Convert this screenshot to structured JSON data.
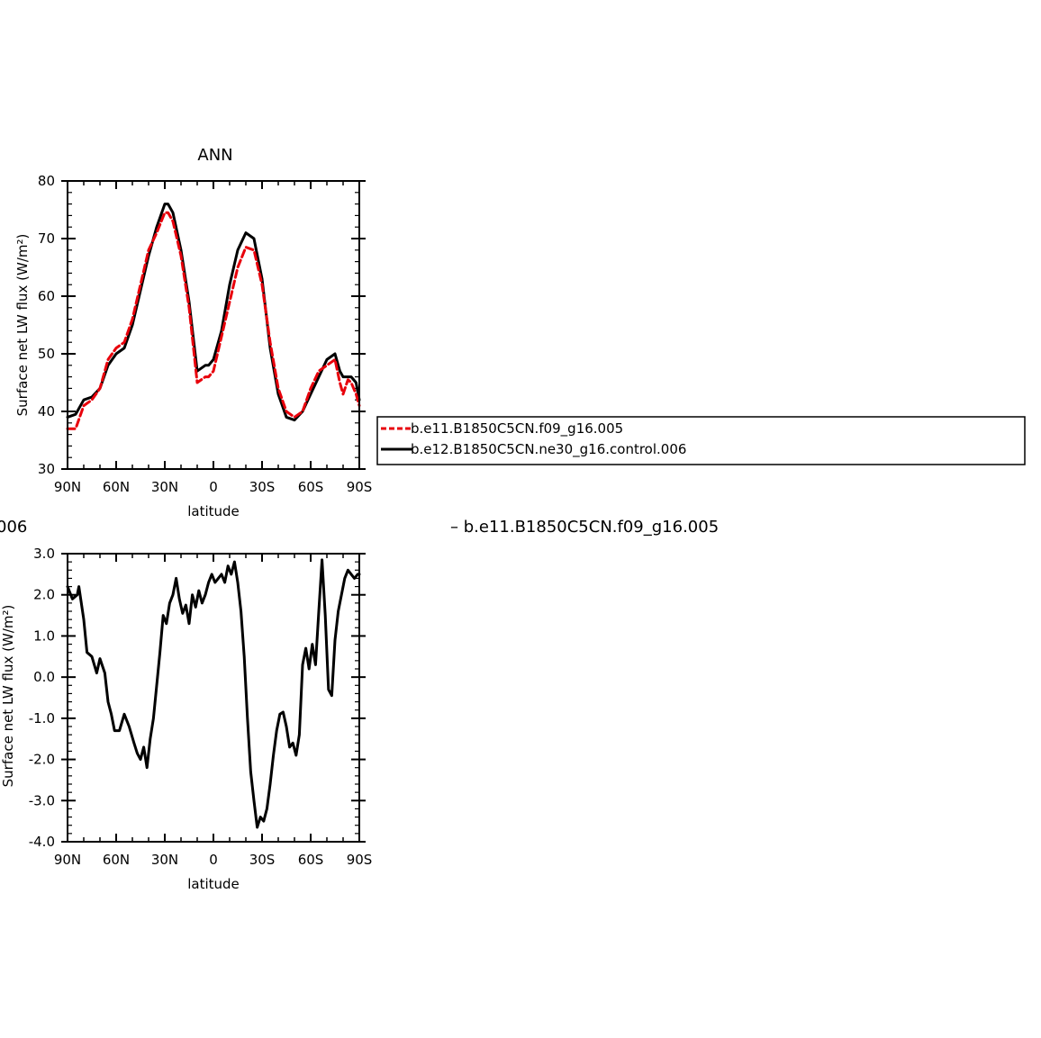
{
  "chart_data": [
    {
      "type": "line",
      "title": "ANN",
      "xlabel": "latitude",
      "ylabel": "Surface net LW flux (W/m²)",
      "xlim": [
        90,
        -90
      ],
      "ylim": [
        30,
        80
      ],
      "x_ticks": [
        90,
        60,
        30,
        0,
        -30,
        -60,
        -90
      ],
      "x_tick_labels": [
        "90N",
        "60N",
        "30N",
        "0",
        "30S",
        "60S",
        "90S"
      ],
      "y_ticks": [
        30,
        40,
        50,
        60,
        70,
        80
      ],
      "y_tick_labels": [
        "30",
        "40",
        "50",
        "60",
        "70",
        "80"
      ],
      "legend_placement": "right",
      "x": [
        90,
        85,
        80,
        75,
        70,
        65,
        60,
        55,
        50,
        45,
        40,
        35,
        30,
        28,
        25,
        20,
        15,
        10,
        5,
        3,
        0,
        -5,
        -10,
        -15,
        -20,
        -25,
        -30,
        -35,
        -40,
        -45,
        -50,
        -55,
        -60,
        -65,
        -70,
        -75,
        -78,
        -80,
        -83,
        -85,
        -88,
        -90
      ],
      "series": [
        {
          "name": "b.e11.B1850C5CN.f09_g16.005",
          "color": "#e8000b",
          "style": "dashed",
          "values": [
            37,
            37,
            41,
            42,
            44,
            49,
            51,
            52,
            56,
            62,
            68,
            71,
            74.5,
            74.5,
            73,
            67,
            58,
            45,
            46,
            46,
            47,
            53,
            59,
            65,
            68.5,
            68,
            62,
            52,
            44,
            40,
            39,
            40,
            44,
            47,
            48,
            49,
            45,
            43,
            45.5,
            45,
            43,
            41
          ]
        },
        {
          "name": "b.e12.B1850C5CN.ne30_g16.control.006",
          "color": "#000000",
          "style": "solid",
          "values": [
            39,
            39.5,
            42,
            42.5,
            44,
            48,
            50,
            51,
            55,
            61,
            67,
            72,
            76,
            76,
            74.5,
            68,
            59,
            47,
            48,
            48,
            49,
            54,
            62,
            68,
            71,
            70,
            63,
            51,
            43,
            39,
            38.5,
            40,
            43,
            46,
            49,
            50,
            47,
            46,
            46,
            46,
            45,
            42
          ]
        }
      ]
    },
    {
      "type": "line",
      "title": "",
      "xlabel": "latitude",
      "ylabel": "Surface net LW flux (W/m²)",
      "xlim": [
        90,
        -90
      ],
      "ylim": [
        -4,
        3
      ],
      "x_ticks": [
        90,
        60,
        30,
        0,
        -30,
        -60,
        -90
      ],
      "x_tick_labels": [
        "90N",
        "60N",
        "30N",
        "0",
        "30S",
        "60S",
        "90S"
      ],
      "y_ticks": [
        -4,
        -3,
        -2,
        -1,
        0,
        1,
        2,
        3
      ],
      "y_tick_labels": [
        "-4.0",
        "-3.0",
        "-2.0",
        "-1.0",
        "0.0",
        "1.0",
        "2.0",
        "3.0"
      ],
      "x": [
        90,
        87,
        84,
        83,
        80,
        78,
        75,
        72,
        70,
        67,
        65,
        63,
        61,
        58,
        55,
        52,
        49,
        47,
        45,
        43,
        41,
        39,
        37,
        35,
        33,
        31,
        29,
        27,
        25,
        23,
        21,
        19,
        17,
        15,
        13,
        11,
        9,
        7,
        5,
        3,
        1,
        -1,
        -3,
        -5,
        -7,
        -9,
        -11,
        -13,
        -15,
        -17,
        -19,
        -21,
        -23,
        -25,
        -27,
        -29,
        -31,
        -33,
        -35,
        -37,
        -39,
        -41,
        -43,
        -45,
        -47,
        -49,
        -51,
        -53,
        -55,
        -57,
        -59,
        -61,
        -63,
        -65,
        -67,
        -69,
        -71,
        -73,
        -75,
        -77,
        -79,
        -81,
        -83,
        -85,
        -87,
        -89,
        -90
      ],
      "series": [
        {
          "name": "",
          "color": "#000000",
          "style": "solid",
          "values": [
            2.2,
            1.9,
            2.0,
            2.2,
            1.4,
            0.6,
            0.5,
            0.1,
            0.45,
            0.1,
            -0.6,
            -0.9,
            -1.3,
            -1.3,
            -0.9,
            -1.2,
            -1.6,
            -1.85,
            -2.0,
            -1.7,
            -2.2,
            -1.5,
            -1.0,
            -0.2,
            0.6,
            1.5,
            1.3,
            1.8,
            2.0,
            2.4,
            1.9,
            1.55,
            1.75,
            1.3,
            2.0,
            1.7,
            2.1,
            1.8,
            2.0,
            2.3,
            2.5,
            2.3,
            2.4,
            2.5,
            2.3,
            2.7,
            2.5,
            2.8,
            2.3,
            1.6,
            0.5,
            -1.0,
            -2.3,
            -3.0,
            -3.65,
            -3.4,
            -3.5,
            -3.2,
            -2.6,
            -1.9,
            -1.3,
            -0.9,
            -0.85,
            -1.2,
            -1.7,
            -1.6,
            -1.9,
            -1.4,
            0.3,
            0.7,
            0.2,
            0.8,
            0.3,
            1.6,
            2.85,
            1.5,
            -0.3,
            -0.45,
            0.9,
            1.6,
            2.0,
            2.4,
            2.6,
            2.5,
            2.4,
            2.5,
            2.5
          ]
        }
      ]
    }
  ],
  "bottom_left_label": "006",
  "bottom_legend_text": "–  b.e11.B1850C5CN.f09_g16.005"
}
